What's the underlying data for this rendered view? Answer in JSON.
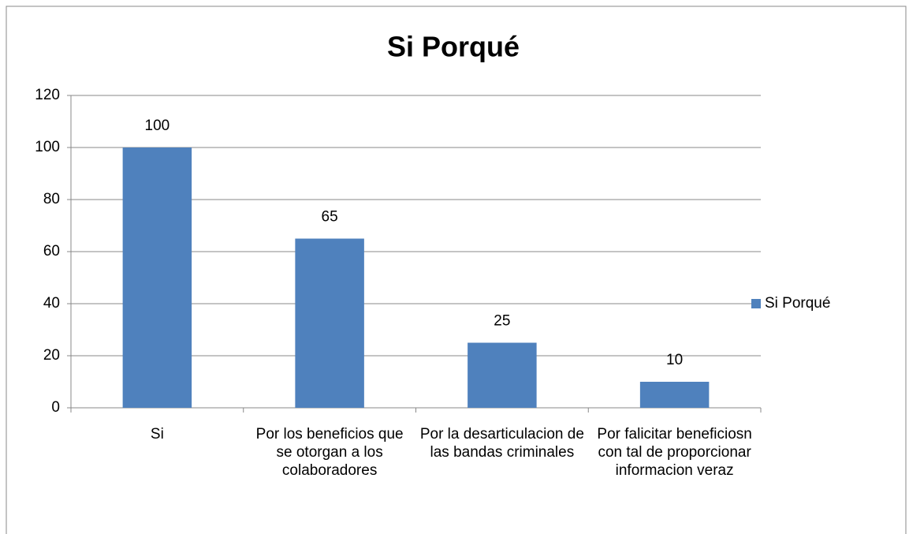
{
  "chart_data": {
    "type": "bar",
    "title": "Si Porqué",
    "categories": [
      "Si",
      "Por los beneficios que se otorgan a los colaboradores",
      "Por la desarticulacion de las bandas criminales",
      "Por falicitar beneficiosn con tal de proporcionar informacion veraz"
    ],
    "series": [
      {
        "name": "Si Porqué",
        "color": "#4f81bd",
        "values": [
          100,
          65,
          25,
          10
        ]
      }
    ],
    "ylim": [
      0,
      120
    ],
    "yticks": [
      0,
      20,
      40,
      60,
      80,
      100,
      120
    ],
    "grid": true,
    "legend": "right"
  }
}
